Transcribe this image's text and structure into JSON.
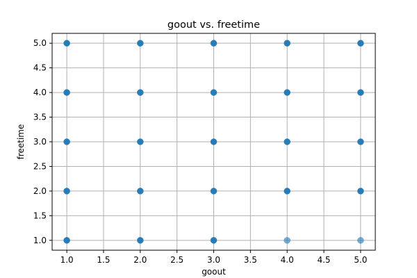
{
  "chart_data": {
    "type": "scatter",
    "title": "goout vs. freetime",
    "xlabel": "goout",
    "ylabel": "freetime",
    "xlim": [
      0.8,
      5.2
    ],
    "ylim": [
      0.8,
      5.2
    ],
    "xticks": [
      "1.0",
      "1.5",
      "2.0",
      "2.5",
      "3.0",
      "3.5",
      "4.0",
      "4.5",
      "5.0"
    ],
    "yticks": [
      "1.0",
      "1.5",
      "2.0",
      "2.5",
      "3.0",
      "3.5",
      "4.0",
      "4.5",
      "5.0"
    ],
    "grid": true,
    "point_color": "#1f77b4",
    "points": [
      {
        "x": 1,
        "y": 1,
        "density": "high"
      },
      {
        "x": 1,
        "y": 2,
        "density": "high"
      },
      {
        "x": 1,
        "y": 3,
        "density": "high"
      },
      {
        "x": 1,
        "y": 4,
        "density": "high"
      },
      {
        "x": 1,
        "y": 5,
        "density": "high"
      },
      {
        "x": 2,
        "y": 1,
        "density": "high"
      },
      {
        "x": 2,
        "y": 2,
        "density": "high"
      },
      {
        "x": 2,
        "y": 3,
        "density": "high"
      },
      {
        "x": 2,
        "y": 4,
        "density": "high"
      },
      {
        "x": 2,
        "y": 5,
        "density": "high"
      },
      {
        "x": 3,
        "y": 1,
        "density": "high"
      },
      {
        "x": 3,
        "y": 2,
        "density": "high"
      },
      {
        "x": 3,
        "y": 3,
        "density": "high"
      },
      {
        "x": 3,
        "y": 4,
        "density": "high"
      },
      {
        "x": 3,
        "y": 5,
        "density": "high"
      },
      {
        "x": 4,
        "y": 1,
        "density": "low"
      },
      {
        "x": 4,
        "y": 2,
        "density": "high"
      },
      {
        "x": 4,
        "y": 3,
        "density": "high"
      },
      {
        "x": 4,
        "y": 4,
        "density": "high"
      },
      {
        "x": 4,
        "y": 5,
        "density": "high"
      },
      {
        "x": 5,
        "y": 1,
        "density": "low"
      },
      {
        "x": 5,
        "y": 2,
        "density": "high"
      },
      {
        "x": 5,
        "y": 3,
        "density": "high"
      },
      {
        "x": 5,
        "y": 4,
        "density": "high"
      },
      {
        "x": 5,
        "y": 5,
        "density": "high"
      }
    ]
  }
}
